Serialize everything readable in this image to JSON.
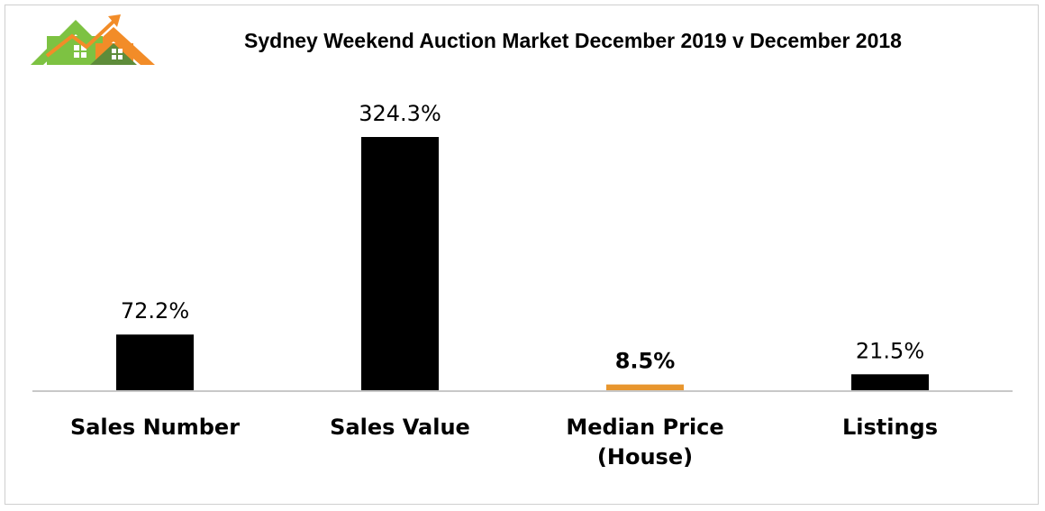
{
  "colors": {
    "bar_default": "#000000",
    "bar_highlight": "#E8962E",
    "axis": "#c8c8c8",
    "logo_orange": "#F28C28",
    "logo_green": "#7DC242",
    "logo_olive": "#5E8C3A"
  },
  "logo": {
    "icon": "house-logo-icon"
  },
  "chart_data": {
    "type": "bar",
    "title": "Sydney Weekend Auction Market December 2019 v December 2018",
    "xlabel": "",
    "ylabel": "",
    "ylim": [
      0,
      324.3
    ],
    "grid": false,
    "legend": "none",
    "categories": [
      [
        "Sales Number"
      ],
      [
        "Sales Value"
      ],
      [
        "Median Price",
        "(House)"
      ],
      [
        "Listings"
      ]
    ],
    "values": [
      72.2,
      324.3,
      8.5,
      21.5
    ],
    "data_labels": [
      "72.2%",
      "324.3%",
      "8.5%",
      "21.5%"
    ],
    "highlight": [
      false,
      false,
      true,
      false
    ]
  }
}
